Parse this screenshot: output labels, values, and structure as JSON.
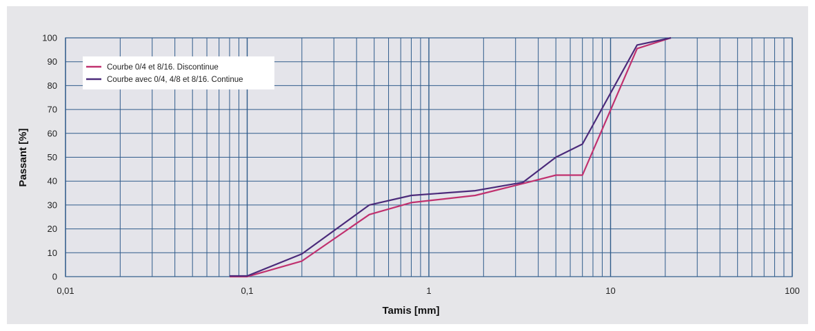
{
  "chart_data": {
    "type": "line",
    "title": "",
    "xlabel": "Tamis [mm]",
    "ylabel": "Passant [%]",
    "x_scale": "log",
    "xlim": [
      0.01,
      100
    ],
    "ylim": [
      0,
      100
    ],
    "x_ticks": [
      {
        "value": 0.01,
        "label": "0,01"
      },
      {
        "value": 0.1,
        "label": "0,1"
      },
      {
        "value": 1,
        "label": "1"
      },
      {
        "value": 10,
        "label": "10"
      },
      {
        "value": 100,
        "label": "100"
      }
    ],
    "y_ticks": [
      0,
      10,
      20,
      30,
      40,
      50,
      60,
      70,
      80,
      90,
      100
    ],
    "grid": true,
    "legend_position": "top-left",
    "series": [
      {
        "name": "Courbe 0/4 et 8/16. Discontinue",
        "color": "#c0306e",
        "points": [
          [
            0.08,
            0
          ],
          [
            0.1,
            0
          ],
          [
            0.2,
            6.5
          ],
          [
            0.47,
            26
          ],
          [
            0.8,
            31
          ],
          [
            1.8,
            34
          ],
          [
            3.3,
            39
          ],
          [
            5.0,
            42.5
          ],
          [
            7.0,
            42.5
          ],
          [
            14,
            95.5
          ],
          [
            21.5,
            100
          ]
        ]
      },
      {
        "name": "Courbe avec 0/4, 4/8 et 8/16. Continue",
        "color": "#4b2a7a",
        "points": [
          [
            0.08,
            0.3
          ],
          [
            0.1,
            0.3
          ],
          [
            0.2,
            9.5
          ],
          [
            0.47,
            30
          ],
          [
            0.8,
            34
          ],
          [
            1.8,
            36
          ],
          [
            3.3,
            39.5
          ],
          [
            5.0,
            50
          ],
          [
            7.0,
            55.5
          ],
          [
            14,
            97
          ],
          [
            21.5,
            100
          ]
        ]
      }
    ]
  }
}
